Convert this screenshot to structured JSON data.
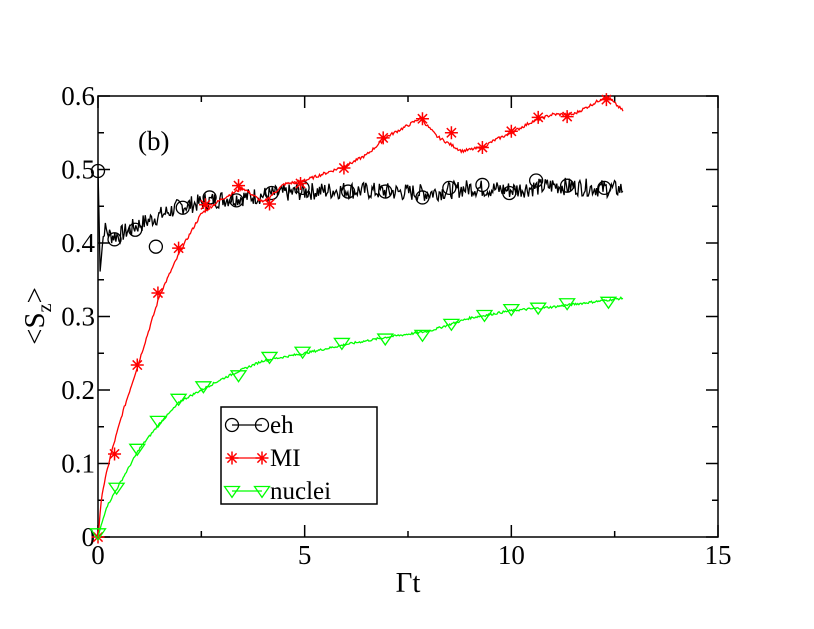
{
  "chart_data": {
    "type": "line",
    "panel_label": "(b)",
    "xlabel": "Γt",
    "ylabel": {
      "main": "<S",
      "sub": "z",
      "close": ">"
    },
    "xlim": [
      0,
      15
    ],
    "ylim": [
      0,
      0.6
    ],
    "xticks": [
      "0",
      "5",
      "10",
      "15"
    ],
    "yticks": [
      "0",
      "0.1",
      "0.2",
      "0.3",
      "0.4",
      "0.5",
      "0.6"
    ],
    "legend_position": "lower-center",
    "series": [
      {
        "name": "eh",
        "color": "#000000",
        "marker": "circle",
        "noise": 0.012,
        "x": [
          0,
          0.05,
          0.15,
          0.3,
          0.5,
          0.8,
          1.2,
          1.6,
          2.0,
          2.5,
          3.0,
          3.5,
          4.0,
          5.0,
          6.0,
          7.0,
          8.0,
          9.0,
          10.0,
          11.0,
          12.0,
          12.7
        ],
        "y": [
          0.5,
          0.37,
          0.42,
          0.41,
          0.41,
          0.42,
          0.43,
          0.44,
          0.45,
          0.455,
          0.46,
          0.462,
          0.465,
          0.47,
          0.472,
          0.47,
          0.468,
          0.475,
          0.472,
          0.478,
          0.475,
          0.473
        ],
        "marker_x": [
          0,
          0.4,
          0.9,
          1.4,
          2.05,
          2.7,
          3.35,
          4.2,
          4.95,
          6.05,
          6.95,
          7.85,
          8.5,
          9.3,
          9.95,
          10.6,
          11.35,
          12.25
        ],
        "marker_y": [
          0.498,
          0.405,
          0.418,
          0.395,
          0.448,
          0.462,
          0.458,
          0.468,
          0.475,
          0.47,
          0.47,
          0.462,
          0.475,
          0.479,
          0.468,
          0.485,
          0.478,
          0.475
        ]
      },
      {
        "name": "MI",
        "color": "#ff0000",
        "marker": "star",
        "noise": 0.002,
        "x": [
          0,
          0.1,
          0.3,
          0.6,
          1.0,
          1.5,
          2.0,
          2.5,
          3.0,
          3.5,
          4.0,
          4.5,
          5.0,
          5.5,
          6.0,
          6.5,
          7.0,
          7.5,
          7.8,
          8.2,
          8.8,
          9.3,
          9.6,
          10.0,
          10.5,
          11.0,
          11.5,
          12.0,
          12.3,
          12.7
        ],
        "y": [
          0.0,
          0.06,
          0.11,
          0.17,
          0.24,
          0.33,
          0.39,
          0.44,
          0.46,
          0.475,
          0.455,
          0.48,
          0.485,
          0.495,
          0.505,
          0.52,
          0.545,
          0.56,
          0.57,
          0.545,
          0.525,
          0.53,
          0.54,
          0.55,
          0.565,
          0.575,
          0.575,
          0.59,
          0.6,
          0.58
        ],
        "marker_x": [
          0,
          0.4,
          0.95,
          1.45,
          1.95,
          2.6,
          3.4,
          4.15,
          4.9,
          5.95,
          6.9,
          7.85,
          8.55,
          9.3,
          10.0,
          10.65,
          11.35,
          12.3
        ],
        "marker_y": [
          0.0,
          0.113,
          0.234,
          0.332,
          0.393,
          0.452,
          0.478,
          0.453,
          0.481,
          0.502,
          0.543,
          0.569,
          0.55,
          0.53,
          0.552,
          0.571,
          0.572,
          0.595
        ]
      },
      {
        "name": "nuclei",
        "color": "#00ff00",
        "marker": "triangle-down",
        "noise": 0.0015,
        "x": [
          0,
          0.2,
          0.5,
          1.0,
          1.5,
          2.0,
          2.5,
          3.0,
          3.5,
          4.0,
          5.0,
          6.0,
          7.0,
          8.0,
          9.0,
          10.0,
          11.0,
          12.0,
          12.7
        ],
        "y": [
          0.0,
          0.04,
          0.07,
          0.12,
          0.155,
          0.185,
          0.2,
          0.215,
          0.228,
          0.24,
          0.25,
          0.262,
          0.272,
          0.28,
          0.298,
          0.308,
          0.313,
          0.32,
          0.325
        ],
        "marker_x": [
          0,
          0.45,
          0.95,
          1.45,
          1.95,
          2.55,
          3.4,
          4.15,
          4.95,
          5.9,
          6.95,
          7.85,
          8.55,
          9.35,
          10.0,
          10.65,
          11.35,
          12.35
        ],
        "marker_y": [
          0.005,
          0.067,
          0.12,
          0.158,
          0.188,
          0.205,
          0.22,
          0.245,
          0.252,
          0.264,
          0.27,
          0.275,
          0.29,
          0.302,
          0.31,
          0.312,
          0.318,
          0.32
        ]
      }
    ]
  }
}
